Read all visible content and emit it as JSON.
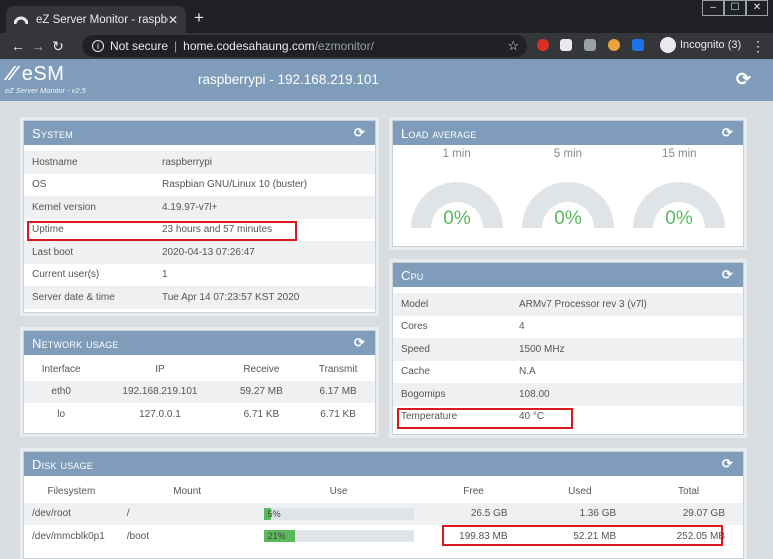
{
  "browser": {
    "tab_title": "eZ Server Monitor - raspberrypi",
    "tab_close": "✕",
    "new_tab": "+",
    "security_label": "Not secure",
    "url_host": "home.codesahaung.com",
    "url_path": "/ezmonitor/",
    "incognito_label": "Incognito (3)",
    "window_controls": [
      "–",
      "☐",
      "✕"
    ]
  },
  "header": {
    "logo": "eSM",
    "subtitle": "eZ Server Monitor - v2.5",
    "host": "raspberrypi - 192.168.219.101",
    "refresh_icon": "refresh-icon"
  },
  "system": {
    "title": "System",
    "rows": [
      {
        "label": "Hostname",
        "value": "raspberrypi"
      },
      {
        "label": "OS",
        "value": "Raspbian GNU/Linux 10 (buster)"
      },
      {
        "label": "Kernel version",
        "value": "4.19.97-v7l+"
      },
      {
        "label": "Uptime",
        "value": "23 hours and 57 minutes"
      },
      {
        "label": "Last boot",
        "value": "2020-04-13 07:26:47"
      },
      {
        "label": "Current user(s)",
        "value": "1"
      },
      {
        "label": "Server date & time",
        "value": "Tue Apr 14 07:23:57 KST 2020"
      }
    ]
  },
  "network": {
    "title": "Network usage",
    "headers": [
      "Interface",
      "IP",
      "Receive",
      "Transmit"
    ],
    "rows": [
      {
        "iface": "eth0",
        "ip": "192.168.219.101",
        "receive": "59.27 MB",
        "transmit": "6.17 MB"
      },
      {
        "iface": "lo",
        "ip": "127.0.0.1",
        "receive": "6.71 KB",
        "transmit": "6.71 KB"
      }
    ]
  },
  "load": {
    "title": "Load average",
    "gauges": [
      {
        "label": "1 min",
        "value": "0%",
        "fraction": 0
      },
      {
        "label": "5 min",
        "value": "0%",
        "fraction": 0
      },
      {
        "label": "15 min",
        "value": "0%",
        "fraction": 0
      }
    ]
  },
  "cpu": {
    "title": "Cpu",
    "rows": [
      {
        "label": "Model",
        "value": "ARMv7 Processor rev 3 (v7l)"
      },
      {
        "label": "Cores",
        "value": "4"
      },
      {
        "label": "Speed",
        "value": "1500 MHz"
      },
      {
        "label": "Cache",
        "value": "N.A"
      },
      {
        "label": "Bogomips",
        "value": "108.00"
      },
      {
        "label": "Temperature",
        "value": "40 °C"
      }
    ]
  },
  "disk": {
    "title": "Disk usage",
    "headers": [
      "Filesystem",
      "Mount",
      "Use",
      "Free",
      "Used",
      "Total"
    ],
    "rows": [
      {
        "filesystem": "/dev/root",
        "mount": "/",
        "use": "5%",
        "use_fraction": 0.05,
        "free": "26.5 GB",
        "used": "1.36 GB",
        "total": "29.07 GB"
      },
      {
        "filesystem": "/dev/mmcblk0p1",
        "mount": "/boot",
        "use": "21%",
        "use_fraction": 0.21,
        "free": "199.83 MB",
        "used": "52.21 MB",
        "total": "252.05 MB"
      }
    ]
  },
  "colors": {
    "header_bg": "#7f9dba",
    "gauge_value": "#5cb85c",
    "highlight": "#d8191e"
  }
}
